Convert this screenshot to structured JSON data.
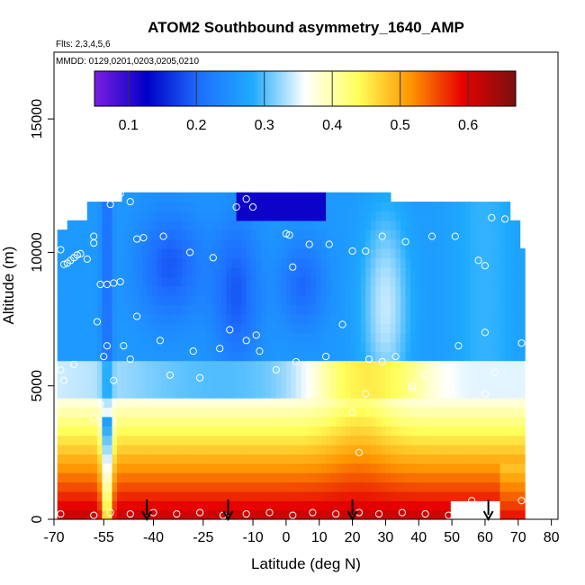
{
  "chart_data": {
    "type": "heatmap",
    "title": "ATOM2 Southbound asymmetry_1640_AMP",
    "subtitle_lines": [
      "Flts: 2,3,4,5,6",
      "MMDD: 0129,0201,0203,0205,0210"
    ],
    "xlabel": "Latitude (deg N)",
    "ylabel": "Altitude (m)",
    "xlim": [
      -70,
      82
    ],
    "ylim": [
      0,
      17500
    ],
    "xticks": [
      -70,
      -55,
      -40,
      -25,
      -10,
      0,
      10,
      20,
      30,
      40,
      50,
      60,
      70,
      80
    ],
    "xtick_labels": [
      "-70",
      "-55",
      "-40",
      "-25",
      "-10",
      "0",
      "10",
      "20",
      "30",
      "40",
      "50",
      "60",
      "70",
      "80"
    ],
    "yticks": [
      0,
      5000,
      10000,
      15000
    ],
    "ytick_labels": [
      "0",
      "5000",
      "10000",
      "15000"
    ],
    "colorbar": {
      "range": [
        0.05,
        0.67
      ],
      "ticks": [
        0.1,
        0.2,
        0.3,
        0.4,
        0.5,
        0.6
      ],
      "tick_labels": [
        "0.1",
        "0.2",
        "0.3",
        "0.4",
        "0.5",
        "0.6"
      ],
      "colors": [
        "#7b1fe0",
        "#0000c8",
        "#1e6fff",
        "#1eaaff",
        "#ffffff",
        "#ffff5a",
        "#ff9600",
        "#e60000",
        "#7a1010"
      ]
    },
    "arrow_latitudes": [
      -42,
      -17.5,
      20,
      61
    ],
    "sample_points": [
      {
        "x": -68,
        "y": 10100
      },
      {
        "x": -67,
        "y": 9550
      },
      {
        "x": -66,
        "y": 9600
      },
      {
        "x": -65,
        "y": 9700
      },
      {
        "x": -64,
        "y": 9800
      },
      {
        "x": -63,
        "y": 9900
      },
      {
        "x": -62,
        "y": 9950
      },
      {
        "x": -60,
        "y": 9750
      },
      {
        "x": -58,
        "y": 10600
      },
      {
        "x": -58,
        "y": 10350
      },
      {
        "x": -56,
        "y": 8800
      },
      {
        "x": -54,
        "y": 8800
      },
      {
        "x": -52,
        "y": 8850
      },
      {
        "x": -50,
        "y": 8900
      },
      {
        "x": -53,
        "y": 11800
      },
      {
        "x": -50,
        "y": 12200
      },
      {
        "x": -47,
        "y": 11900
      },
      {
        "x": -45,
        "y": 10500
      },
      {
        "x": -43,
        "y": 10550
      },
      {
        "x": -37,
        "y": 10600
      },
      {
        "x": -29,
        "y": 10000
      },
      {
        "x": -22,
        "y": 9800
      },
      {
        "x": -15,
        "y": 11700
      },
      {
        "x": -12,
        "y": 12000
      },
      {
        "x": -10,
        "y": 11700
      },
      {
        "x": 0,
        "y": 10700
      },
      {
        "x": 1,
        "y": 10650
      },
      {
        "x": 2,
        "y": 9450
      },
      {
        "x": 7,
        "y": 10300
      },
      {
        "x": 13,
        "y": 10300
      },
      {
        "x": 20,
        "y": 10050
      },
      {
        "x": 24,
        "y": 10050
      },
      {
        "x": 29,
        "y": 10600
      },
      {
        "x": 36,
        "y": 10400
      },
      {
        "x": 44,
        "y": 10600
      },
      {
        "x": 51,
        "y": 10600
      },
      {
        "x": 58,
        "y": 9700
      },
      {
        "x": 60,
        "y": 9500
      },
      {
        "x": 62,
        "y": 11300
      },
      {
        "x": 66,
        "y": 11250
      },
      {
        "x": -68,
        "y": 5600
      },
      {
        "x": -67,
        "y": 5200
      },
      {
        "x": -64,
        "y": 5800
      },
      {
        "x": -57,
        "y": 7400
      },
      {
        "x": -55,
        "y": 6100
      },
      {
        "x": -54,
        "y": 6500
      },
      {
        "x": -52,
        "y": 5200
      },
      {
        "x": -49,
        "y": 6500
      },
      {
        "x": -47,
        "y": 6000
      },
      {
        "x": -45,
        "y": 7600
      },
      {
        "x": -38,
        "y": 6700
      },
      {
        "x": -35,
        "y": 5400
      },
      {
        "x": -28,
        "y": 6300
      },
      {
        "x": -26,
        "y": 5300
      },
      {
        "x": -20,
        "y": 6400
      },
      {
        "x": -17,
        "y": 7100
      },
      {
        "x": -12,
        "y": 6700
      },
      {
        "x": -9,
        "y": 6900
      },
      {
        "x": -8,
        "y": 6300
      },
      {
        "x": -3,
        "y": 5600
      },
      {
        "x": 3,
        "y": 5900
      },
      {
        "x": 7,
        "y": 5300
      },
      {
        "x": 12,
        "y": 6100
      },
      {
        "x": 17,
        "y": 7300
      },
      {
        "x": 25,
        "y": 6000
      },
      {
        "x": 29,
        "y": 5900
      },
      {
        "x": 33,
        "y": 6100
      },
      {
        "x": 38,
        "y": 5000
      },
      {
        "x": 42,
        "y": 5400
      },
      {
        "x": 52,
        "y": 6500
      },
      {
        "x": 60,
        "y": 7000
      },
      {
        "x": 63,
        "y": 5500
      },
      {
        "x": 71,
        "y": 6600
      },
      {
        "x": -58,
        "y": 3800
      },
      {
        "x": -56,
        "y": 4300
      },
      {
        "x": 20,
        "y": 4000
      },
      {
        "x": 24,
        "y": 4700
      },
      {
        "x": 38,
        "y": 4900
      },
      {
        "x": 51,
        "y": 4800
      },
      {
        "x": 60,
        "y": 4700
      },
      {
        "x": 22,
        "y": 2500
      },
      {
        "x": -68,
        "y": 200
      },
      {
        "x": -58,
        "y": 150
      },
      {
        "x": -53,
        "y": 250
      },
      {
        "x": -47,
        "y": 200
      },
      {
        "x": -40,
        "y": 250
      },
      {
        "x": -33,
        "y": 200
      },
      {
        "x": -26,
        "y": 250
      },
      {
        "x": -19,
        "y": 150
      },
      {
        "x": -12,
        "y": 200
      },
      {
        "x": -5,
        "y": 250
      },
      {
        "x": 2,
        "y": 150
      },
      {
        "x": 8,
        "y": 250
      },
      {
        "x": 15,
        "y": 200
      },
      {
        "x": 22,
        "y": 250
      },
      {
        "x": 28,
        "y": 200
      },
      {
        "x": 35,
        "y": 250
      },
      {
        "x": 42,
        "y": 200
      },
      {
        "x": 49,
        "y": 150
      },
      {
        "x": 56,
        "y": 700
      },
      {
        "x": 71,
        "y": 700
      }
    ]
  }
}
